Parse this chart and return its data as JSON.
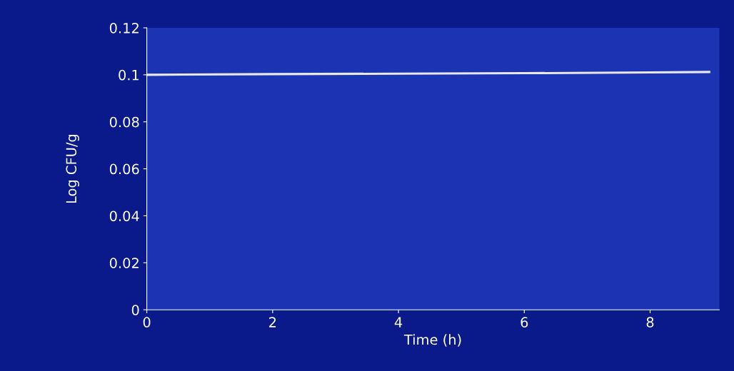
{
  "chart_data": {
    "type": "line",
    "xlabel": "Time (h)",
    "ylabel": "Log CFU/g",
    "x": [
      0,
      2,
      4,
      6,
      8,
      8.94
    ],
    "series": [
      {
        "color": "#e8e8e8",
        "values": [
          0.1,
          0.1003,
          0.1005,
          0.1007,
          0.101,
          0.1012
        ]
      }
    ],
    "xlim": [
      0,
      9.1
    ],
    "xticks": [
      0,
      2,
      4,
      6,
      8
    ],
    "ylim": [
      0,
      0.12
    ],
    "yticks": [
      0,
      0.02,
      0.04,
      0.06,
      0.08,
      0.1,
      0.12
    ],
    "grid": false,
    "legend": false,
    "marker": "none",
    "line_style": "solid"
  }
}
